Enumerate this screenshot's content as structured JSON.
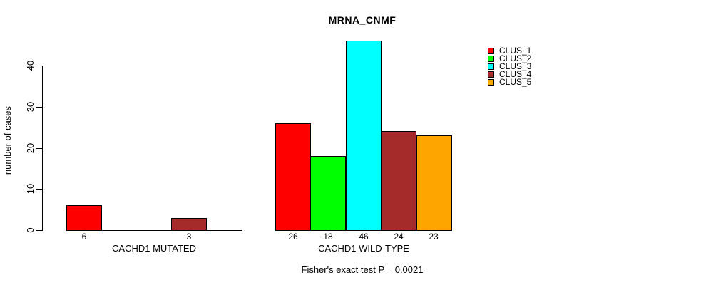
{
  "chart_data": {
    "type": "bar",
    "title": "MRNA_CNMF",
    "ylabel": "number of cases",
    "xlabel": "",
    "annotation": "Fisher's exact test P = 0.0021",
    "ylim": [
      0,
      46
    ],
    "yticks": [
      0,
      10,
      20,
      30,
      40
    ],
    "grid": false,
    "legend_position": "right-outside",
    "series": [
      "CLUS_1",
      "CLUS_2",
      "CLUS_3",
      "CLUS_4",
      "CLUS_5"
    ],
    "series_colors": [
      "#ff0000",
      "#00ff00",
      "#00ffff",
      "#a52a2a",
      "#ffa500"
    ],
    "bar_border_color": "#000000",
    "groups": [
      {
        "label": "CACHD1 MUTATED",
        "values": [
          6,
          0,
          0,
          3,
          0
        ]
      },
      {
        "label": "CACHD1 WILD-TYPE",
        "values": [
          26,
          18,
          46,
          24,
          23
        ]
      }
    ],
    "bar_value_labels_shown_only_when_nonzero": true
  }
}
